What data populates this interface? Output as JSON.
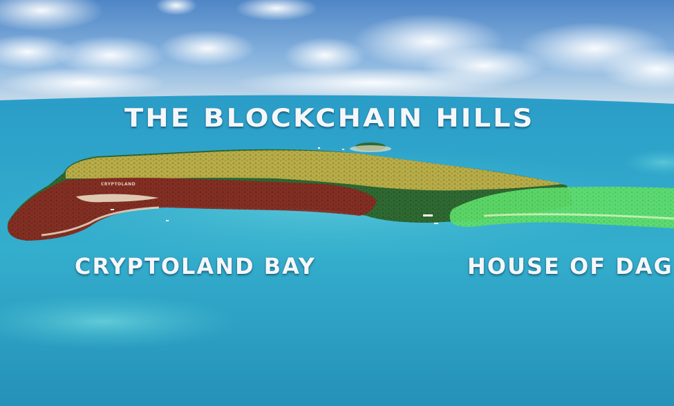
{
  "map": {
    "regions": [
      {
        "id": "blockchain-hills",
        "label": "THE BLOCKCHAIN HILLS",
        "color": "#c9b64a"
      },
      {
        "id": "cryptoland-bay",
        "label": "CRYPTOLAND BAY",
        "color": "#8c2a22"
      },
      {
        "id": "house-of-dag",
        "label": "HOUSE OF DAG",
        "color": "#5fe06a"
      }
    ],
    "small_sign": "CRYPTOLAND",
    "colors": {
      "sea": "#2a9fc4",
      "shallow_water": "#63d3dd",
      "sky": "#6fa3d6",
      "forest": "#2f6a32"
    }
  }
}
